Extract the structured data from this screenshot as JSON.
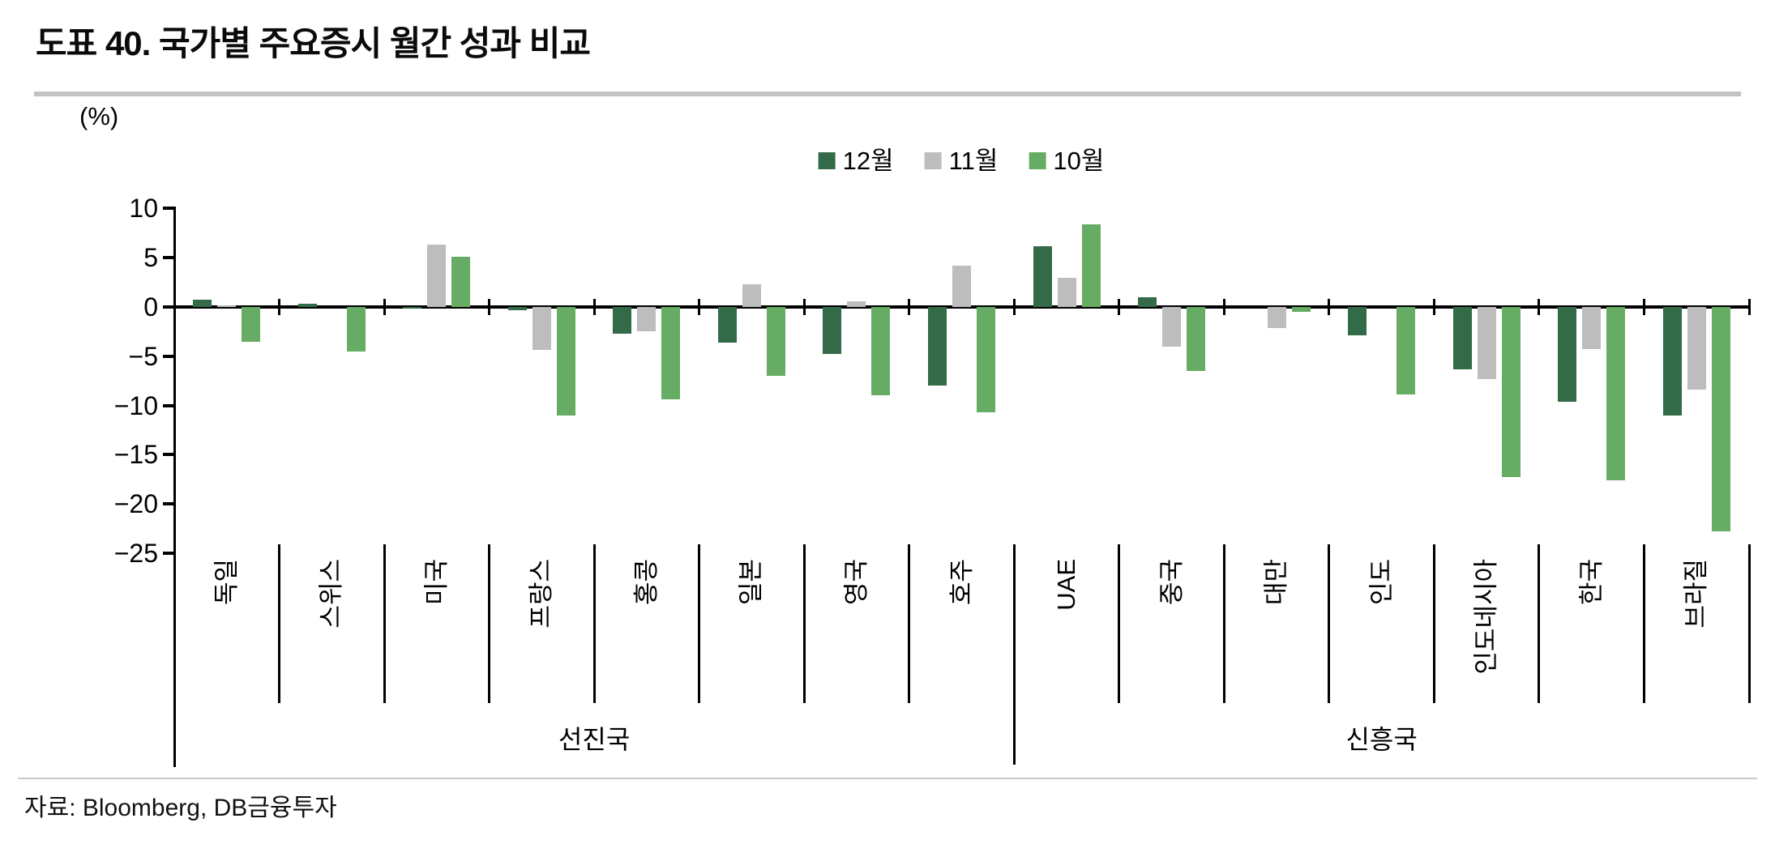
{
  "title": "도표 40. 국가별 주요증시 월간 성과 비교",
  "source": "자료: Bloomberg, DB금융투자",
  "colors": {
    "dec": "#336A47",
    "nov": "#BDBDBD",
    "oct": "#67AC64",
    "axis": "#000000",
    "title_rule": "#C2C2C2"
  },
  "chart_data": {
    "type": "bar",
    "title": "도표 40. 국가별 주요증시 월간 성과 비교",
    "unit_label": "(%)",
    "xlabel": "",
    "ylabel": "(%)",
    "ylim": [
      -25,
      10
    ],
    "y_ticks": [
      10,
      5,
      0,
      -5,
      -10,
      -15,
      -20,
      -25
    ],
    "grid": false,
    "legend_position": "top-center",
    "categories": [
      "독일",
      "스위스",
      "미국",
      "프랑스",
      "홍콩",
      "일본",
      "영국",
      "호주",
      "UAE",
      "중국",
      "대만",
      "인도",
      "인도네시아",
      "한국",
      "브라질"
    ],
    "groups": [
      {
        "label": "선진국",
        "span": [
          0,
          7
        ]
      },
      {
        "label": "신흥국",
        "span": [
          8,
          14
        ]
      }
    ],
    "series": [
      {
        "name": "12월",
        "color": "#336A47",
        "values": [
          0.7,
          0.3,
          -0.2,
          -0.3,
          -2.7,
          -3.6,
          -4.8,
          -8.0,
          6.2,
          1.0,
          0.0,
          -2.9,
          -6.3,
          -9.6,
          -11.0
        ]
      },
      {
        "name": "11월",
        "color": "#BDBDBD",
        "values": [
          0.2,
          0.0,
          6.3,
          -4.4,
          -2.5,
          2.3,
          0.6,
          4.2,
          3.0,
          -4.0,
          -2.1,
          0.0,
          -7.3,
          -4.3,
          -8.4
        ]
      },
      {
        "name": "10월",
        "color": "#67AC64",
        "values": [
          -3.5,
          -4.5,
          5.1,
          -11.0,
          -9.4,
          -7.0,
          -9.0,
          -10.7,
          8.4,
          -6.5,
          -0.5,
          -8.9,
          -17.3,
          -17.6,
          -22.8
        ]
      }
    ]
  }
}
